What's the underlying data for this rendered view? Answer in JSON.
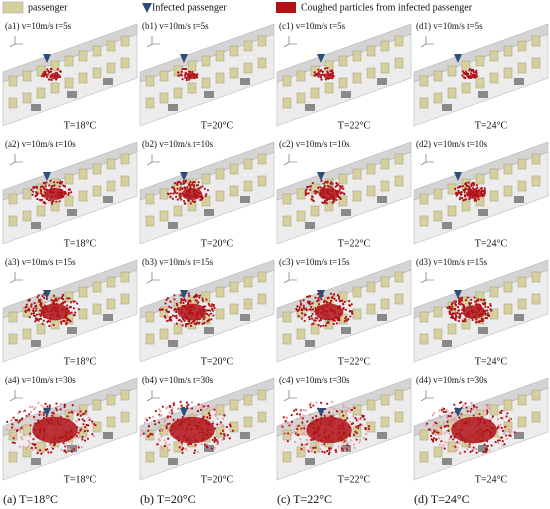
{
  "legend": [
    "passenger",
    "Infected passenger",
    "Coughed particles from infected passenger"
  ],
  "panels": [
    [
      {
        "label": "(a1) v=10m/s  t=5s",
        "temperature": "T=18°C"
      },
      {
        "label": "(b1) v=10m/s  t=5s",
        "temperature": "T=20°C"
      },
      {
        "label": "(c1) v=10m/s  t=5s",
        "temperature": "T=22°C"
      },
      {
        "label": "(d1) v=10m/s  t=5s",
        "temperature": "T=24°C"
      }
    ],
    [
      {
        "label": "(a2) v=10m/s  t=10s",
        "temperature": "T=18°C"
      },
      {
        "label": "(b2) v=10m/s  t=10s",
        "temperature": "T=20°C"
      },
      {
        "label": "(c2) v=10m/s  t=10s",
        "temperature": "T=22°C"
      },
      {
        "label": "(d2) v=10m/s  t=10s",
        "temperature": "T=24°C"
      }
    ],
    [
      {
        "label": "(a3) v=10m/s  t=15s",
        "temperature": "T=18°C"
      },
      {
        "label": "(b3) v=10m/s  t=15s",
        "temperature": "T=20°C"
      },
      {
        "label": "(c3) v=10m/s  t=15s",
        "temperature": "T=22°C"
      },
      {
        "label": "(d3) v=10m/s  t=15s",
        "temperature": "T=24°C"
      }
    ],
    [
      {
        "label": "(a4) v=10m/s  t=30s",
        "temperature": "T=18°C"
      },
      {
        "label": "(b4) v=10m/s  t=30s",
        "temperature": "T=20°C"
      },
      {
        "label": "(c4) v=10m/s  t=30s",
        "temperature": "T=22°C"
      },
      {
        "label": "(d4) v=10m/s  t=30s",
        "temperature": "T=24°C"
      }
    ]
  ],
  "captions": [
    "(a) T=18°C",
    "(b) T=20°C",
    "(c) T=22°C",
    "(d) T=24°C"
  ]
}
